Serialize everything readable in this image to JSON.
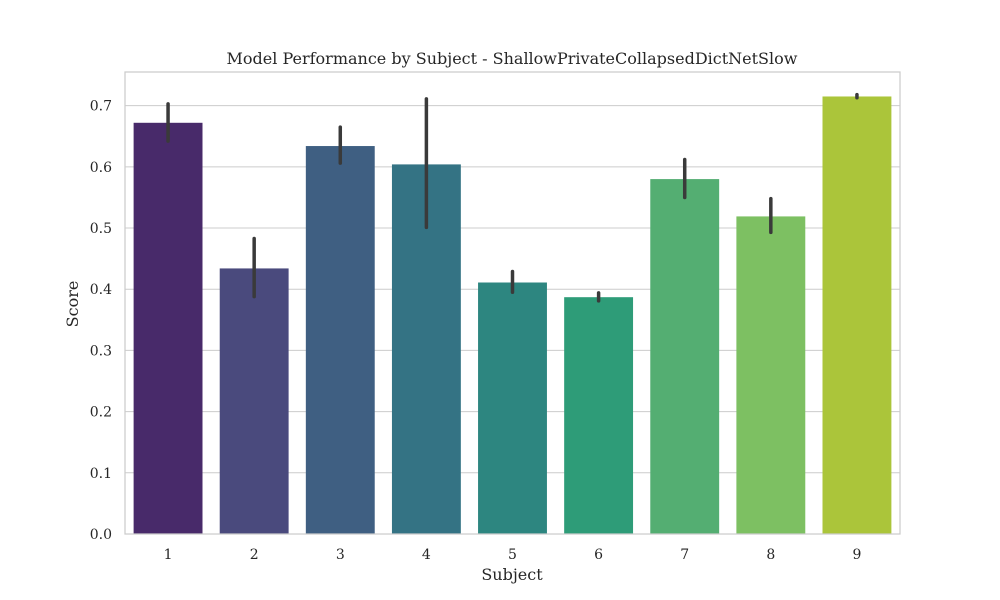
{
  "chart_data": {
    "type": "bar",
    "title": "Model Performance by Subject - ShallowPrivateCollapsedDictNetSlow",
    "xlabel": "Subject",
    "ylabel": "Score",
    "categories": [
      "1",
      "2",
      "3",
      "4",
      "5",
      "6",
      "7",
      "8",
      "9"
    ],
    "values": [
      0.672,
      0.434,
      0.634,
      0.604,
      0.411,
      0.387,
      0.58,
      0.519,
      0.715
    ],
    "error_bars": [
      [
        0.642,
        0.703
      ],
      [
        0.388,
        0.483
      ],
      [
        0.606,
        0.665
      ],
      [
        0.501,
        0.711
      ],
      [
        0.395,
        0.429
      ],
      [
        0.381,
        0.394
      ],
      [
        0.55,
        0.612
      ],
      [
        0.493,
        0.548
      ],
      [
        0.713,
        0.718
      ]
    ],
    "ylim": [
      0,
      0.755
    ],
    "yticks": [
      "0.0",
      "0.1",
      "0.2",
      "0.3",
      "0.4",
      "0.5",
      "0.6",
      "0.7"
    ],
    "grid": true,
    "colors": [
      "#482a6a",
      "#4a4a7d",
      "#3f5f82",
      "#347384",
      "#2d8680",
      "#2e9c78",
      "#54ae72",
      "#7dc062",
      "#abc53a"
    ]
  }
}
